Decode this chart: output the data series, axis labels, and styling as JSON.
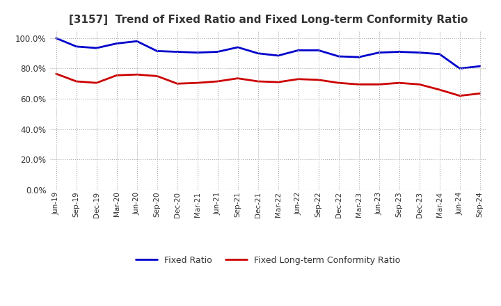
{
  "title": "[3157]  Trend of Fixed Ratio and Fixed Long-term Conformity Ratio",
  "x_labels": [
    "Jun-19",
    "Sep-19",
    "Dec-19",
    "Mar-20",
    "Jun-20",
    "Sep-20",
    "Dec-20",
    "Mar-21",
    "Jun-21",
    "Sep-21",
    "Dec-21",
    "Mar-22",
    "Jun-22",
    "Sep-22",
    "Dec-22",
    "Mar-23",
    "Jun-23",
    "Sep-23",
    "Dec-23",
    "Mar-24",
    "Jun-24",
    "Sep-24"
  ],
  "fixed_ratio": [
    100.0,
    94.5,
    93.5,
    96.5,
    98.0,
    91.5,
    91.0,
    90.5,
    91.0,
    94.0,
    90.0,
    88.5,
    92.0,
    92.0,
    88.0,
    87.5,
    90.5,
    91.0,
    90.5,
    89.5,
    80.0,
    81.5
  ],
  "fixed_lt_ratio": [
    76.5,
    71.5,
    70.5,
    75.5,
    76.0,
    75.0,
    70.0,
    70.5,
    71.5,
    73.5,
    71.5,
    71.0,
    73.0,
    72.5,
    70.5,
    69.5,
    69.5,
    70.5,
    69.5,
    66.0,
    62.0,
    63.5
  ],
  "fixed_ratio_color": "#0000CC",
  "fixed_lt_ratio_color": "#CC0000",
  "ylim": [
    0,
    105
  ],
  "yticks": [
    0,
    20,
    40,
    60,
    80,
    100
  ],
  "ytick_labels": [
    "0.0%",
    "20.0%",
    "40.0%",
    "60.0%",
    "80.0%",
    "100.0%"
  ],
  "title_color": "#333333",
  "background_color": "#FFFFFF",
  "plot_bg_color": "#FFFFFF",
  "grid_color": "#AAAAAA",
  "legend_fixed_ratio": "Fixed Ratio",
  "legend_fixed_lt_ratio": "Fixed Long-term Conformity Ratio",
  "line_width": 2.0
}
